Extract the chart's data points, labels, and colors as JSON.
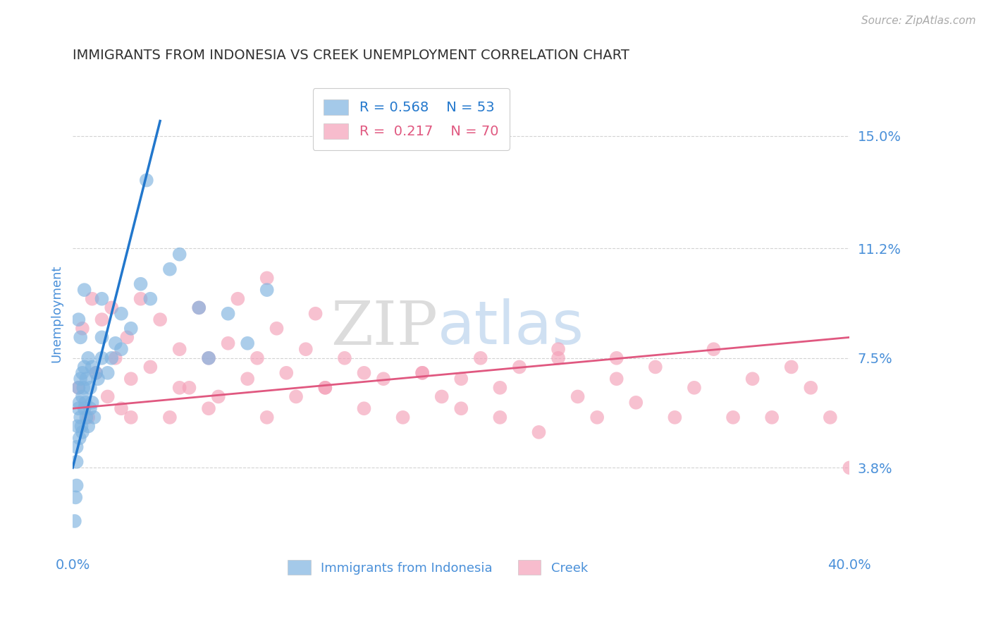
{
  "title": "IMMIGRANTS FROM INDONESIA VS CREEK UNEMPLOYMENT CORRELATION CHART",
  "source_text": "Source: ZipAtlas.com",
  "ylabel": "Unemployment",
  "xlim": [
    0.0,
    40.0
  ],
  "ylim": [
    1.0,
    17.0
  ],
  "yticks": [
    3.8,
    7.5,
    11.2,
    15.0
  ],
  "xticks": [
    0.0,
    40.0
  ],
  "xtick_labels": [
    "0.0%",
    "40.0%"
  ],
  "ytick_labels": [
    "3.8%",
    "7.5%",
    "11.2%",
    "15.0%"
  ],
  "background_color": "#ffffff",
  "grid_color": "#c8c8c8",
  "watermark_zip": "ZIP",
  "watermark_atlas": "atlas",
  "legend_r1": "R = 0.568",
  "legend_n1": "N = 53",
  "legend_r2": "R =  0.217",
  "legend_n2": "N = 70",
  "blue_color": "#7eb3e0",
  "pink_color": "#f4a0b8",
  "blue_line_color": "#2277cc",
  "pink_line_color": "#e05880",
  "title_color": "#303030",
  "axis_label_color": "#4a90d9",
  "source_color": "#aaaaaa",
  "blue_scatter_x": [
    0.1,
    0.15,
    0.2,
    0.2,
    0.25,
    0.3,
    0.3,
    0.35,
    0.35,
    0.4,
    0.4,
    0.45,
    0.5,
    0.5,
    0.5,
    0.55,
    0.6,
    0.6,
    0.65,
    0.7,
    0.7,
    0.8,
    0.8,
    0.9,
    0.9,
    1.0,
    1.0,
    1.1,
    1.2,
    1.3,
    1.5,
    1.5,
    1.8,
    2.0,
    2.2,
    2.5,
    2.5,
    3.0,
    3.5,
    4.0,
    5.0,
    5.5,
    6.5,
    7.0,
    8.0,
    9.0,
    10.0,
    3.8,
    1.5,
    0.3,
    0.4,
    0.2,
    0.6
  ],
  "blue_scatter_y": [
    2.0,
    2.8,
    3.2,
    4.5,
    5.2,
    5.8,
    6.5,
    4.8,
    6.0,
    5.5,
    6.8,
    5.2,
    5.0,
    6.2,
    7.0,
    6.5,
    5.8,
    7.2,
    6.0,
    5.5,
    6.8,
    5.2,
    7.5,
    5.8,
    6.5,
    6.0,
    7.2,
    5.5,
    7.0,
    6.8,
    7.5,
    8.2,
    7.0,
    7.5,
    8.0,
    7.8,
    9.0,
    8.5,
    10.0,
    9.5,
    10.5,
    11.0,
    9.2,
    7.5,
    9.0,
    8.0,
    9.8,
    13.5,
    9.5,
    8.8,
    8.2,
    4.0,
    9.8
  ],
  "pink_scatter_x": [
    0.3,
    0.5,
    0.8,
    1.0,
    1.2,
    1.5,
    1.8,
    2.0,
    2.2,
    2.5,
    2.8,
    3.0,
    3.5,
    4.0,
    4.5,
    5.0,
    5.5,
    6.0,
    6.5,
    7.0,
    7.5,
    8.0,
    8.5,
    9.0,
    9.5,
    10.0,
    10.5,
    11.0,
    11.5,
    12.0,
    12.5,
    13.0,
    14.0,
    15.0,
    16.0,
    17.0,
    18.0,
    19.0,
    20.0,
    21.0,
    22.0,
    23.0,
    24.0,
    25.0,
    26.0,
    27.0,
    28.0,
    29.0,
    30.0,
    31.0,
    32.0,
    33.0,
    34.0,
    35.0,
    36.0,
    37.0,
    38.0,
    39.0,
    40.0,
    5.5,
    10.0,
    15.0,
    20.0,
    25.0,
    7.0,
    13.0,
    18.0,
    22.0,
    28.0,
    3.0
  ],
  "pink_scatter_y": [
    6.5,
    8.5,
    5.5,
    9.5,
    7.0,
    8.8,
    6.2,
    9.2,
    7.5,
    5.8,
    8.2,
    6.8,
    9.5,
    7.2,
    8.8,
    5.5,
    7.8,
    6.5,
    9.2,
    7.5,
    6.2,
    8.0,
    9.5,
    6.8,
    7.5,
    5.5,
    8.5,
    7.0,
    6.2,
    7.8,
    9.0,
    6.5,
    7.5,
    5.8,
    6.8,
    5.5,
    7.0,
    6.2,
    5.8,
    7.5,
    6.5,
    7.2,
    5.0,
    7.8,
    6.2,
    5.5,
    7.5,
    6.0,
    7.2,
    5.5,
    6.5,
    7.8,
    5.5,
    6.8,
    5.5,
    7.2,
    6.5,
    5.5,
    3.8,
    6.5,
    10.2,
    7.0,
    6.8,
    7.5,
    5.8,
    6.5,
    7.0,
    5.5,
    6.8,
    5.5
  ],
  "blue_trend_x0": 0.0,
  "blue_trend_y0": 3.8,
  "blue_trend_x1": 4.5,
  "blue_trend_y1": 15.5,
  "pink_trend_x0": 0.0,
  "pink_trend_y0": 5.8,
  "pink_trend_x1": 40.0,
  "pink_trend_y1": 8.2
}
